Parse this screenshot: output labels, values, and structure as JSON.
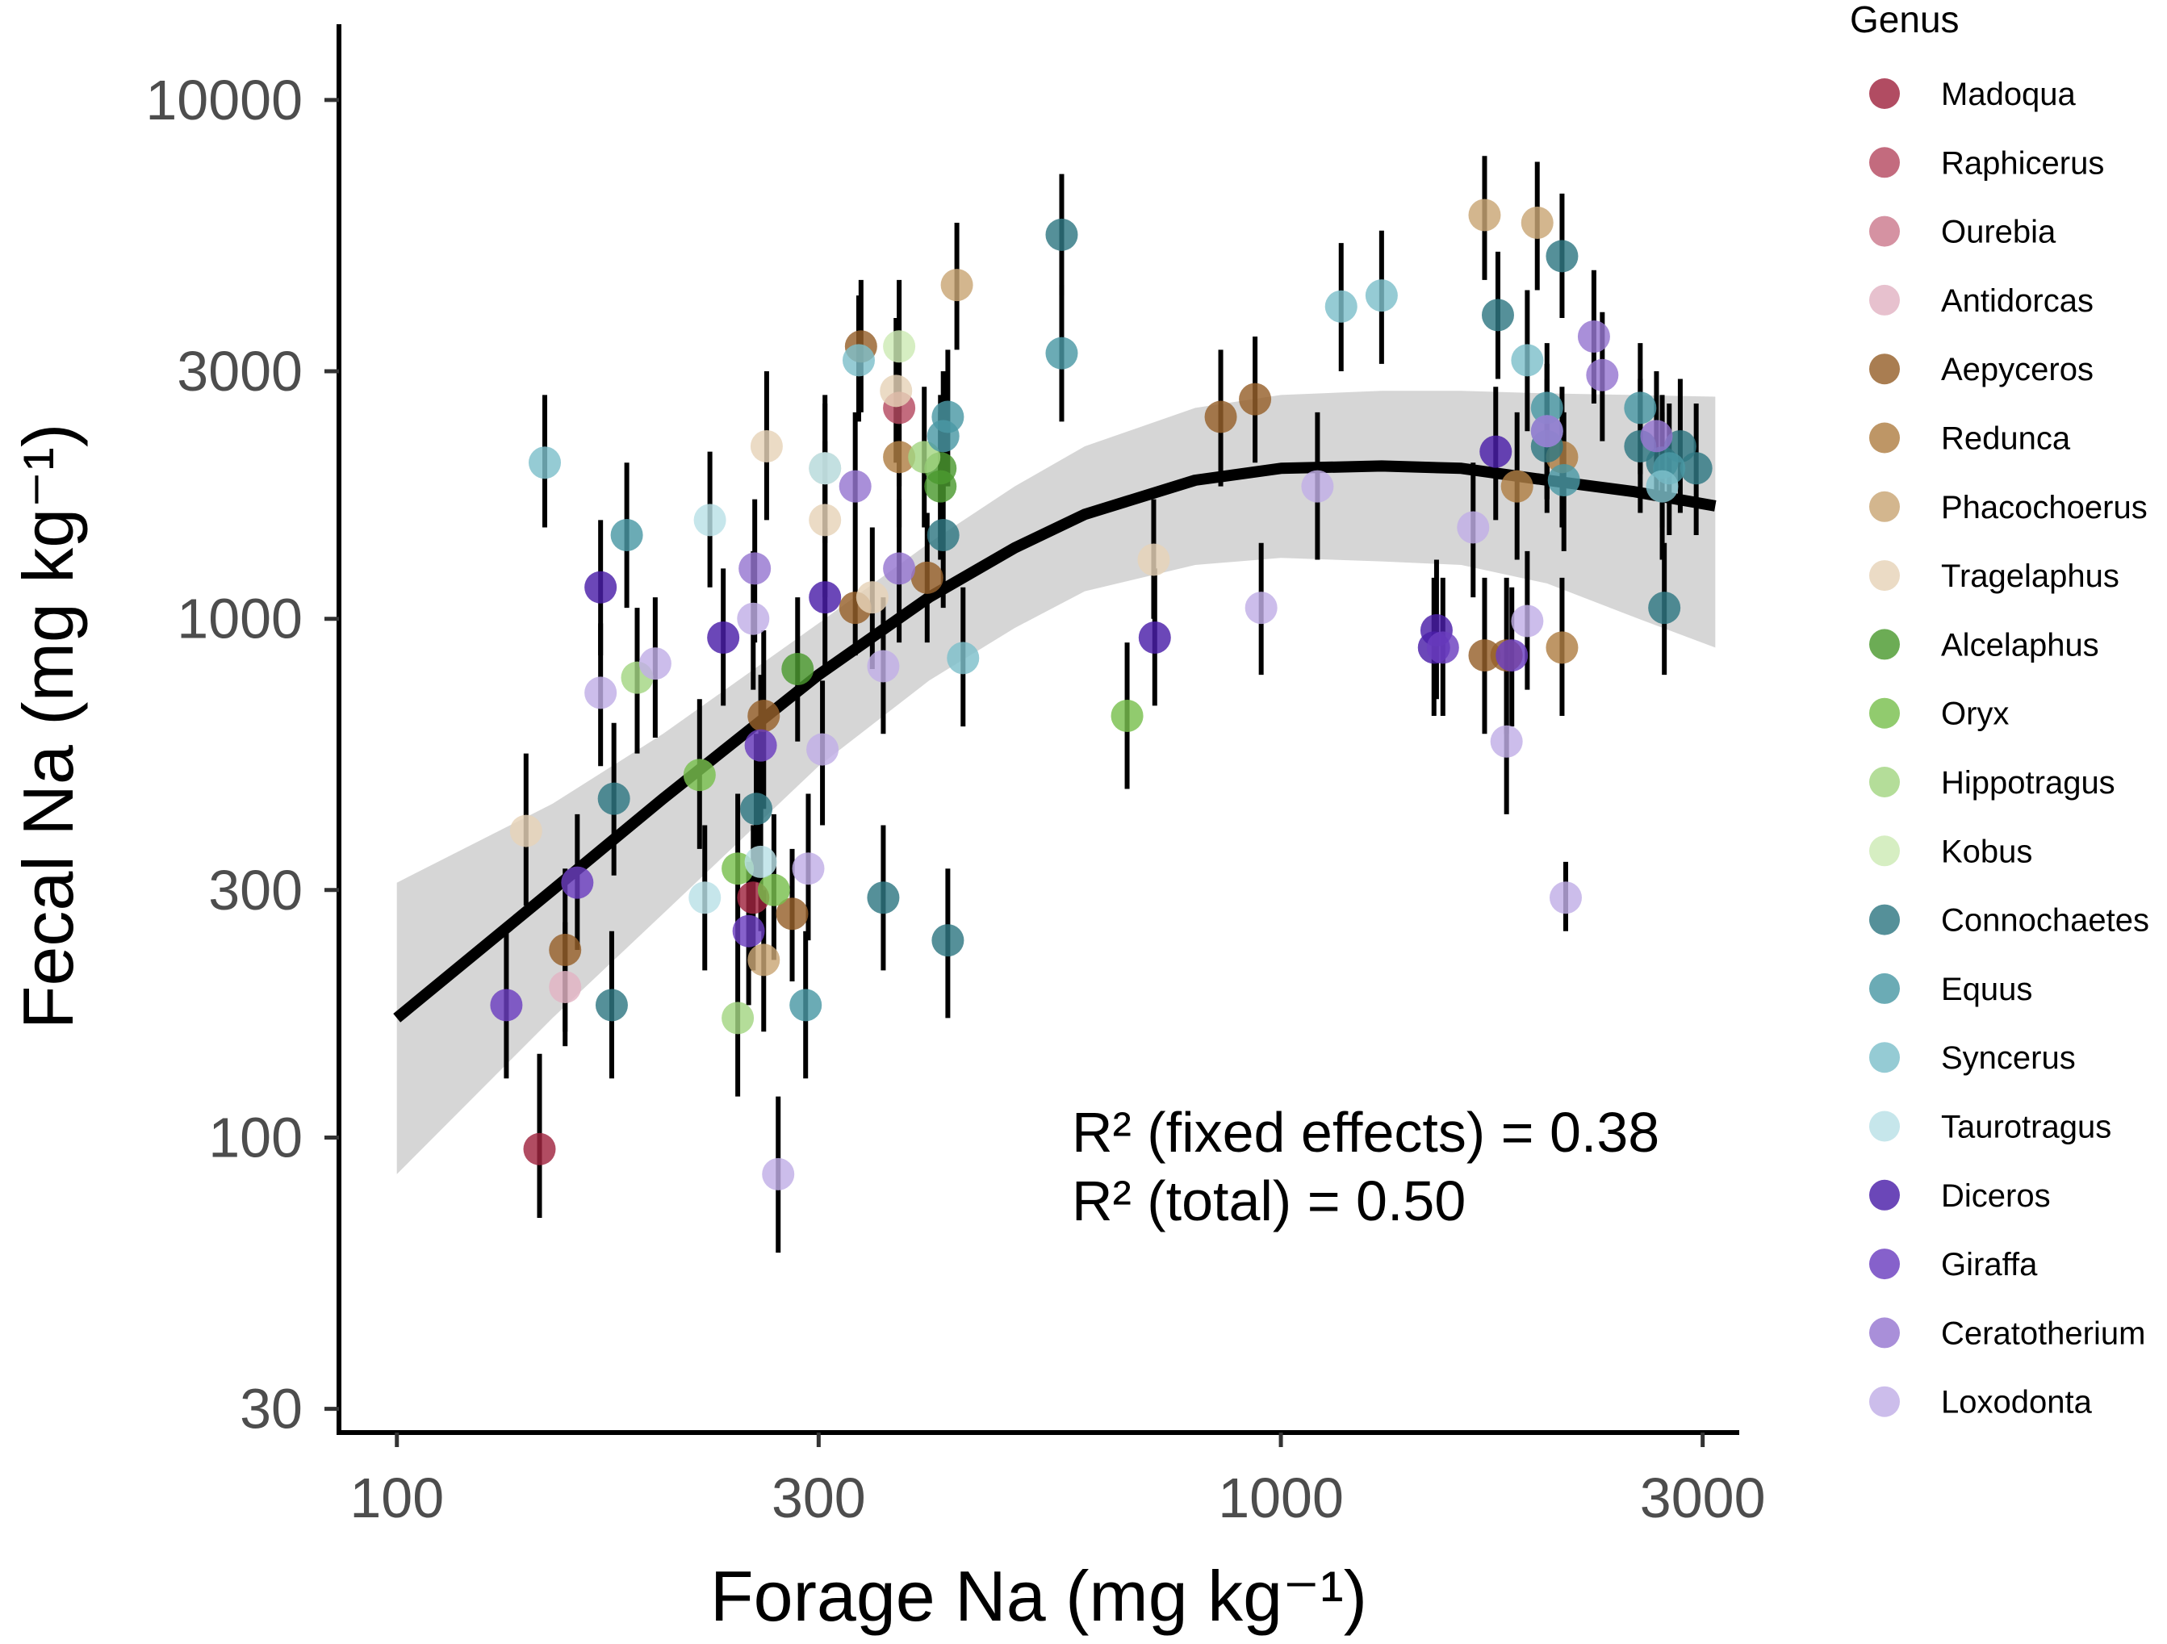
{
  "chart_data": {
    "type": "scatter",
    "title": "",
    "xlabel": "Forage Na (mg kg⁻¹)",
    "ylabel": "Fecal Na (mg kg⁻¹)",
    "x_scale": "log10",
    "y_scale": "log10",
    "xlim": [
      86,
      3300
    ],
    "ylim": [
      27,
      14000
    ],
    "x_ticks": [
      100,
      300,
      1000,
      3000
    ],
    "x_tick_labels": [
      "100",
      "300",
      "1000",
      "3000"
    ],
    "y_ticks": [
      30,
      100,
      300,
      1000,
      3000,
      10000
    ],
    "y_tick_labels": [
      "30",
      "100",
      "300",
      "1000",
      "3000",
      "10000"
    ],
    "legend": {
      "title": "Genus",
      "position": "right",
      "entries": [
        {
          "name": "Madoqua",
          "color": "#a0243f"
        },
        {
          "name": "Raphicerus",
          "color": "#b64a62"
        },
        {
          "name": "Ourebia",
          "color": "#cc7a8e"
        },
        {
          "name": "Antidorcas",
          "color": "#e2b3c3"
        },
        {
          "name": "Aepyceros",
          "color": "#96602b"
        },
        {
          "name": "Redunca",
          "color": "#b07f44"
        },
        {
          "name": "Phacochoerus",
          "color": "#c9a675"
        },
        {
          "name": "Tragelaphus",
          "color": "#e6d3b8"
        },
        {
          "name": "Alcelaphus",
          "color": "#4c9a30"
        },
        {
          "name": "Oryx",
          "color": "#79bf4e"
        },
        {
          "name": "Hippotragus",
          "color": "#a3d682"
        },
        {
          "name": "Kobus",
          "color": "#cdeab5"
        },
        {
          "name": "Connochaetes",
          "color": "#2f7882"
        },
        {
          "name": "Equus",
          "color": "#4a98a5"
        },
        {
          "name": "Syncerus",
          "color": "#7ebfca"
        },
        {
          "name": "Taurotragus",
          "color": "#b9e1e7"
        },
        {
          "name": "Diceros",
          "color": "#4a1ea8"
        },
        {
          "name": "Giraffa",
          "color": "#6b3ec0"
        },
        {
          "name": "Ceratotherium",
          "color": "#9676d1"
        },
        {
          "name": "Loxodonta",
          "color": "#c1aee6"
        }
      ]
    },
    "annotations": [
      {
        "text": "R² (fixed effects) = 0.38"
      },
      {
        "text": "R² (total) = 0.50"
      }
    ],
    "fit_line": {
      "x": [
        100,
        150,
        200,
        300,
        400,
        500,
        600,
        800,
        1000,
        1300,
        1600,
        2000,
        2500,
        3100
      ],
      "y": [
        170,
        300,
        450,
        780,
        1100,
        1370,
        1590,
        1850,
        1950,
        1970,
        1950,
        1850,
        1760,
        1650
      ]
    },
    "confidence_band": {
      "x": [
        100,
        150,
        200,
        300,
        400,
        500,
        600,
        800,
        1000,
        1300,
        1600,
        2000,
        2500,
        3100
      ],
      "upper": [
        310,
        440,
        600,
        980,
        1400,
        1800,
        2150,
        2550,
        2700,
        2750,
        2750,
        2720,
        2700,
        2680
      ],
      "lower": [
        85,
        170,
        270,
        520,
        760,
        960,
        1130,
        1270,
        1310,
        1290,
        1270,
        1170,
        1010,
        880
      ]
    },
    "series": [
      {
        "name": "Madoqua",
        "points": [
          [
            145,
            95,
            70,
            145
          ],
          [
            253,
            290,
            210,
            400
          ]
        ]
      },
      {
        "name": "Raphicerus",
        "points": [
          [
            370,
            2550,
            1800,
            3600
          ]
        ]
      },
      {
        "name": "Ourebia",
        "points": []
      },
      {
        "name": "Antidorcas",
        "points": [
          [
            155,
            195,
            150,
            260
          ]
        ]
      },
      {
        "name": "Aepyceros",
        "points": [
          [
            155,
            230,
            160,
            330
          ],
          [
            260,
            650,
            430,
            950
          ],
          [
            280,
            270,
            200,
            360
          ],
          [
            335,
            3350,
            2500,
            4500
          ],
          [
            330,
            1050,
            850,
            1300
          ],
          [
            398,
            1200,
            900,
            1600
          ],
          [
            855,
            2450,
            1800,
            3300
          ],
          [
            935,
            2650,
            2000,
            3500
          ],
          [
            1700,
            850,
            600,
            1200
          ],
          [
            1800,
            850,
            600,
            1200
          ]
        ]
      },
      {
        "name": "Redunca",
        "points": [
          [
            370,
            2050,
            1500,
            2900
          ],
          [
            1850,
            1800,
            1300,
            2500
          ],
          [
            2080,
            2050,
            1500,
            2800
          ],
          [
            2080,
            880,
            650,
            1200
          ]
        ]
      },
      {
        "name": "Phacochoerus",
        "points": [
          [
            260,
            220,
            160,
            300
          ],
          [
            430,
            4400,
            3300,
            5800
          ],
          [
            1700,
            6000,
            4500,
            7800
          ],
          [
            1950,
            5800,
            4300,
            7600
          ]
        ]
      },
      {
        "name": "Tragelaphus",
        "points": [
          [
            140,
            390,
            280,
            550
          ],
          [
            262,
            2150,
            1550,
            3000
          ],
          [
            305,
            1550,
            1100,
            2200
          ],
          [
            305,
            1950,
            1400,
            2700
          ],
          [
            345,
            1100,
            800,
            1500
          ],
          [
            367,
            2750,
            2000,
            3800
          ],
          [
            718,
            1300,
            1000,
            1700
          ]
        ]
      },
      {
        "name": "Alcelaphus",
        "points": [
          [
            412,
            1950,
            1400,
            2700
          ],
          [
            412,
            1800,
            1300,
            2500
          ],
          [
            284,
            800,
            580,
            1100
          ]
        ]
      },
      {
        "name": "Oryx",
        "points": [
          [
            220,
            500,
            360,
            700
          ],
          [
            243,
            330,
            240,
            460
          ],
          [
            267,
            300,
            220,
            420
          ],
          [
            670,
            650,
            470,
            900
          ]
        ]
      },
      {
        "name": "Hippotragus",
        "points": [
          [
            187,
            770,
            550,
            1050
          ],
          [
            243,
            170,
            120,
            240
          ],
          [
            395,
            2050,
            1500,
            2800
          ]
        ]
      },
      {
        "name": "Kobus",
        "points": [
          [
            370,
            3350,
            2500,
            4500
          ]
        ]
      },
      {
        "name": "Connochaetes",
        "points": [
          [
            175,
            180,
            130,
            250
          ],
          [
            176,
            450,
            320,
            630
          ],
          [
            255,
            430,
            310,
            600
          ],
          [
            355,
            290,
            210,
            400
          ],
          [
            420,
            240,
            170,
            330
          ],
          [
            415,
            1450,
            1050,
            2000
          ],
          [
            565,
            5500,
            4200,
            7200
          ],
          [
            1760,
            3850,
            2900,
            5100
          ],
          [
            2080,
            5000,
            3800,
            6600
          ],
          [
            2550,
            2150,
            1600,
            2900
          ],
          [
            2700,
            2000,
            1500,
            2700
          ],
          [
            2830,
            2150,
            1600,
            2900
          ],
          [
            2950,
            1950,
            1450,
            2600
          ],
          [
            2715,
            1050,
            780,
            1400
          ],
          [
            2000,
            2150,
            1600,
            2900
          ]
        ]
      },
      {
        "name": "Equus",
        "points": [
          [
            182,
            1450,
            1050,
            2000
          ],
          [
            290,
            180,
            130,
            250
          ],
          [
            420,
            2450,
            1800,
            3300
          ],
          [
            415,
            2250,
            1700,
            3000
          ],
          [
            565,
            3250,
            2400,
            4400
          ],
          [
            2000,
            2550,
            1900,
            3400
          ],
          [
            2550,
            2550,
            1900,
            3400
          ],
          [
            2750,
            1950,
            1450,
            2600
          ],
          [
            2090,
            1850,
            1350,
            2500
          ]
        ]
      },
      {
        "name": "Syncerus",
        "points": [
          [
            147,
            2000,
            1500,
            2700
          ],
          [
            333,
            3150,
            2400,
            4200
          ],
          [
            437,
            840,
            620,
            1150
          ],
          [
            1170,
            4000,
            3000,
            5300
          ],
          [
            1300,
            4200,
            3100,
            5600
          ],
          [
            1900,
            3150,
            2300,
            4300
          ],
          [
            2000,
            2300,
            1700,
            3100
          ],
          [
            2700,
            1800,
            1300,
            2500
          ]
        ]
      },
      {
        "name": "Taurotragus",
        "points": [
          [
            223,
            290,
            210,
            400
          ],
          [
            226,
            1550,
            1150,
            2100
          ],
          [
            258,
            340,
            250,
            470
          ],
          [
            305,
            1950,
            1450,
            2600
          ]
        ]
      },
      {
        "name": "Diceros",
        "points": [
          [
            170,
            1150,
            850,
            1550
          ],
          [
            234,
            920,
            680,
            1250
          ],
          [
            305,
            1100,
            800,
            1500
          ],
          [
            720,
            920,
            680,
            1250
          ],
          [
            1490,
            880,
            650,
            1200
          ],
          [
            1500,
            950,
            700,
            1300
          ],
          [
            1750,
            2100,
            1550,
            2800
          ]
        ]
      },
      {
        "name": "Giraffa",
        "points": [
          [
            133,
            180,
            130,
            250
          ],
          [
            160,
            310,
            230,
            420
          ],
          [
            258,
            570,
            410,
            780
          ],
          [
            250,
            250,
            180,
            340
          ],
          [
            1525,
            880,
            650,
            1200
          ],
          [
            1825,
            850,
            620,
            1150
          ]
        ]
      },
      {
        "name": "Ceratotherium",
        "points": [
          [
            254,
            1250,
            900,
            1700
          ],
          [
            330,
            1800,
            1300,
            2500
          ],
          [
            370,
            1250,
            900,
            1700
          ],
          [
            2310,
            2950,
            2200,
            3900
          ],
          [
            2660,
            2250,
            1700,
            3000
          ],
          [
            2260,
            3500,
            2600,
            4700
          ],
          [
            2000,
            2300,
            1700,
            3100
          ]
        ]
      },
      {
        "name": "Loxodonta",
        "points": [
          [
            170,
            720,
            520,
            980
          ],
          [
            196,
            820,
            590,
            1100
          ],
          [
            253,
            1000,
            730,
            1350
          ],
          [
            303,
            560,
            400,
            760
          ],
          [
            270,
            85,
            60,
            120
          ],
          [
            292,
            330,
            240,
            460
          ],
          [
            355,
            810,
            600,
            1100
          ],
          [
            1100,
            1800,
            1300,
            2500
          ],
          [
            950,
            1050,
            780,
            1400
          ],
          [
            1800,
            580,
            420,
            800
          ],
          [
            1900,
            990,
            730,
            1350
          ],
          [
            2100,
            290,
            250,
            340
          ],
          [
            1650,
            1500,
            1100,
            2000
          ]
        ]
      }
    ]
  }
}
